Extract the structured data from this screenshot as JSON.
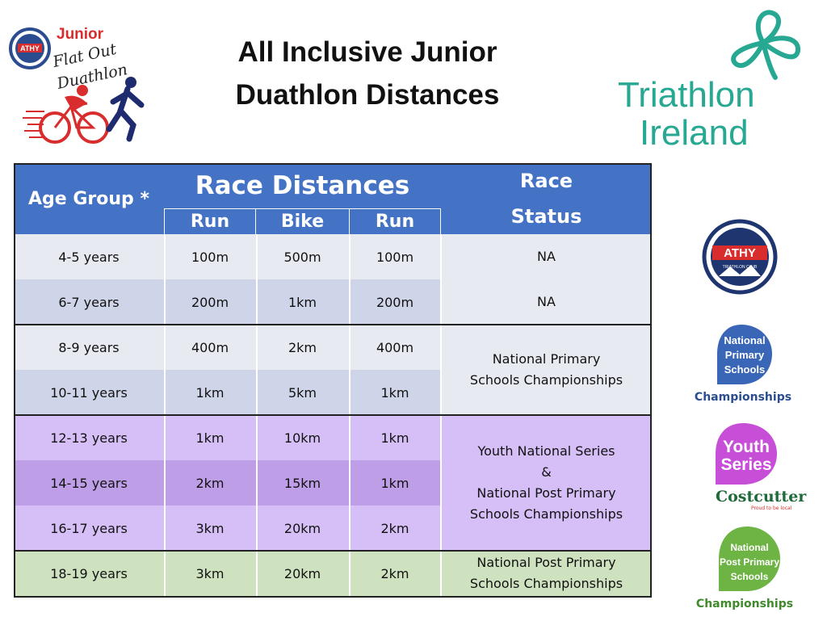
{
  "title": {
    "line1": "All Inclusive Junior",
    "line2": "Duathlon Distances"
  },
  "logo_junior": {
    "word_junior": "Junior",
    "word_flat_out": "Flat Out",
    "word_duathlon": "Duathlon",
    "badge": "ATHY"
  },
  "logo_ti": {
    "line1": "Triathlon",
    "line2": "Ireland"
  },
  "table": {
    "headers": {
      "age_group": "Age Group *",
      "race_distances": "Race Distances",
      "run1": "Run",
      "bike": "Bike",
      "run2": "Run",
      "race_status": "Race Status",
      "race_status_l1": "Race",
      "race_status_l2": "Status"
    },
    "rows": [
      {
        "age": "4-5 years",
        "run1": "100m",
        "bike": "500m",
        "run2": "100m"
      },
      {
        "age": "6-7 years",
        "run1": "200m",
        "bike": "1km",
        "run2": "200m"
      },
      {
        "age": "8-9 years",
        "run1": "400m",
        "bike": "2km",
        "run2": "400m"
      },
      {
        "age": "10-11 years",
        "run1": "1km",
        "bike": "5km",
        "run2": "1km"
      },
      {
        "age": "12-13 years",
        "run1": "1km",
        "bike": "10km",
        "run2": "1km"
      },
      {
        "age": "14-15 years",
        "run1": "2km",
        "bike": "15km",
        "run2": "1km"
      },
      {
        "age": "16-17 years",
        "run1": "3km",
        "bike": "20km",
        "run2": "2km"
      },
      {
        "age": "18-19 years",
        "run1": "3km",
        "bike": "20km",
        "run2": "2km"
      }
    ],
    "status": {
      "s1": "NA",
      "s2": "NA",
      "s3_l1": "National Primary",
      "s3_l2": "Schools Championships",
      "s4_l1": "Youth National Series",
      "s4_l2": "&",
      "s4_l3": "National Post Primary",
      "s4_l4": "Schools Championships",
      "s5_l1": "National Post Primary",
      "s5_l2": "Schools Championships"
    }
  },
  "badges": {
    "athy": {
      "name": "ATHY",
      "sub": "TRIATHLON CLUB"
    },
    "nps": {
      "l1": "National",
      "l2": "Primary",
      "l3": "Schools",
      "caption": "Championships"
    },
    "youth": {
      "l1": "Youth",
      "l2": "Series",
      "sponsor": "Costcutter",
      "tagline": "Proud to be local"
    },
    "npps": {
      "l1": "National",
      "l2": "Post Primary",
      "l3": "Schools",
      "caption": "Championships"
    }
  },
  "colors": {
    "header_blue": "#4472c4",
    "row_gray_light": "#e8eaf1",
    "row_gray_dark": "#cfd5e8",
    "row_purple_light": "#d6bff7",
    "row_purple_dark": "#bf9ee8",
    "row_green": "#cfe2c0",
    "ti_teal": "#27a892"
  }
}
